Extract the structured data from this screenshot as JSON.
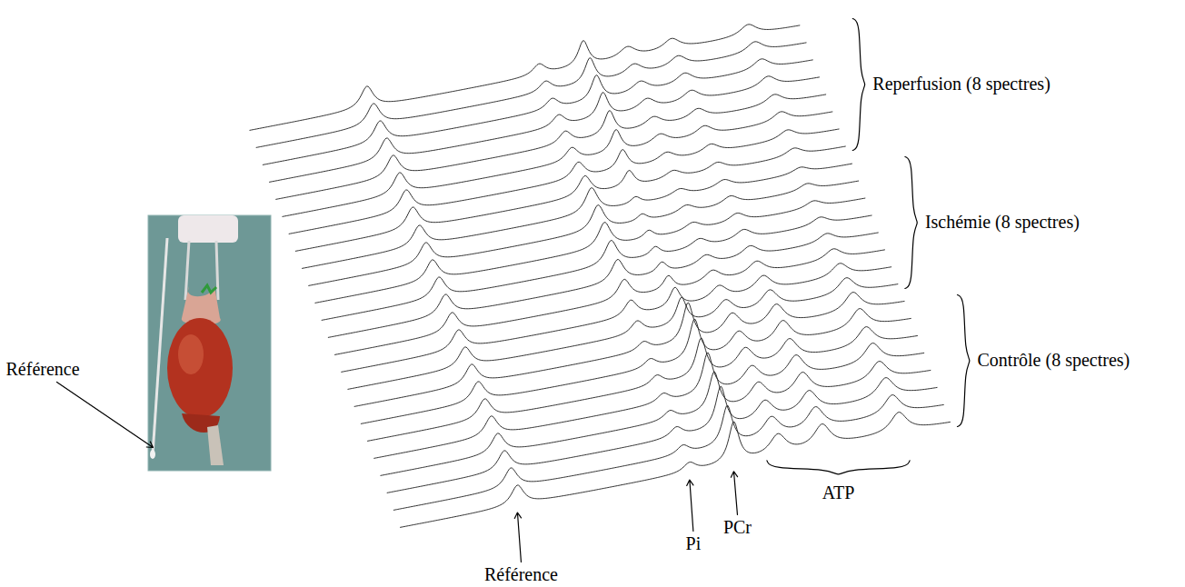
{
  "chart_data": {
    "type": "waterfall",
    "tick_labels": false,
    "photo_label": "Référence",
    "xlim": [
      37,
      -24
    ],
    "peaks": [
      {
        "label": "Référence",
        "positions": [
          24
        ]
      },
      {
        "label": "Pi",
        "positions": [
          4.9
        ]
      },
      {
        "label": "PCr",
        "positions": [
          0
        ]
      },
      {
        "label": "ATP",
        "positions": [
          -4.9,
          -9.8,
          -18.3
        ]
      }
    ],
    "groups": [
      {
        "label": "Contrôle (8 spectres)",
        "heights": [
          [
            22,
            10,
            45,
            22,
            24,
            22
          ],
          [
            22,
            10,
            44,
            22,
            24,
            22
          ],
          [
            22,
            11,
            46,
            21,
            23,
            22
          ],
          [
            22,
            10,
            43,
            22,
            24,
            21
          ],
          [
            22,
            10,
            45,
            21,
            24,
            22
          ],
          [
            22,
            11,
            42,
            22,
            23,
            21
          ],
          [
            22,
            10,
            44,
            21,
            24,
            22
          ],
          [
            22,
            10,
            43,
            22,
            23,
            21
          ]
        ]
      },
      {
        "label": "Ischémie (8 spectres)",
        "heights": [
          [
            22,
            14,
            30,
            18,
            20,
            18
          ],
          [
            22,
            18,
            22,
            15,
            17,
            15
          ],
          [
            22,
            22,
            16,
            13,
            14,
            12
          ],
          [
            23,
            25,
            12,
            11,
            12,
            10
          ],
          [
            23,
            27,
            10,
            10,
            11,
            9
          ],
          [
            23,
            28,
            9,
            9,
            10,
            8
          ],
          [
            23,
            28,
            8,
            9,
            10,
            8
          ],
          [
            23,
            28,
            8,
            8,
            9,
            7
          ]
        ]
      },
      {
        "label": "Reperfusion (8 spectres)",
        "heights": [
          [
            24,
            22,
            18,
            9,
            9,
            9
          ],
          [
            24,
            18,
            22,
            10,
            10,
            10
          ],
          [
            24,
            15,
            25,
            11,
            11,
            11
          ],
          [
            24,
            14,
            27,
            11,
            11,
            11
          ],
          [
            24,
            13,
            28,
            12,
            12,
            12
          ],
          [
            24,
            12,
            28,
            12,
            12,
            12
          ],
          [
            24,
            12,
            28,
            12,
            12,
            12
          ],
          [
            24,
            12,
            28,
            12,
            12,
            12
          ]
        ]
      }
    ]
  }
}
